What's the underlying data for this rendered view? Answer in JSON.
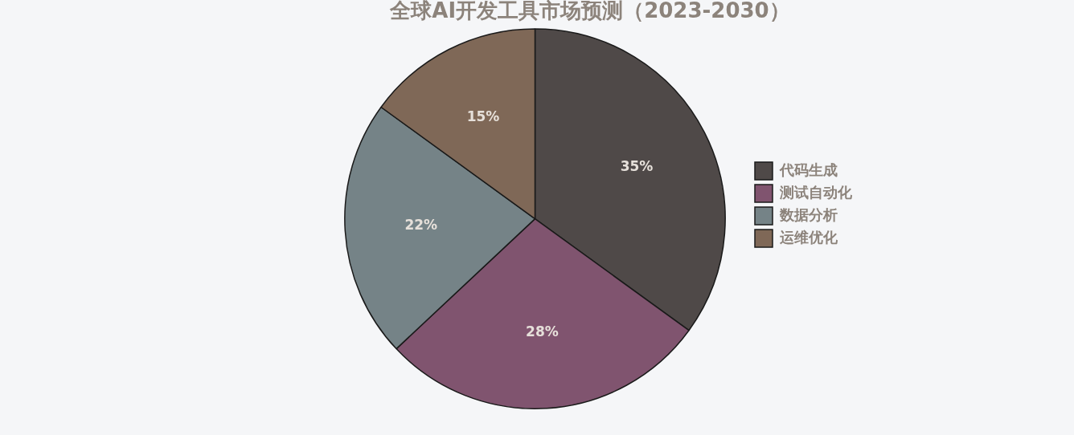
{
  "chart_data": {
    "type": "pie",
    "title": "全球AI开发工具市场预测（2023-2030）",
    "categories": [
      "代码生成",
      "测试自动化",
      "数据分析",
      "运维优化"
    ],
    "values": [
      35,
      28,
      22,
      15
    ],
    "colors": [
      "#4f4948",
      "#80546f",
      "#758387",
      "#7f6857"
    ],
    "value_labels": [
      "35%",
      "28%",
      "22%",
      "15%"
    ],
    "legend": "right"
  }
}
